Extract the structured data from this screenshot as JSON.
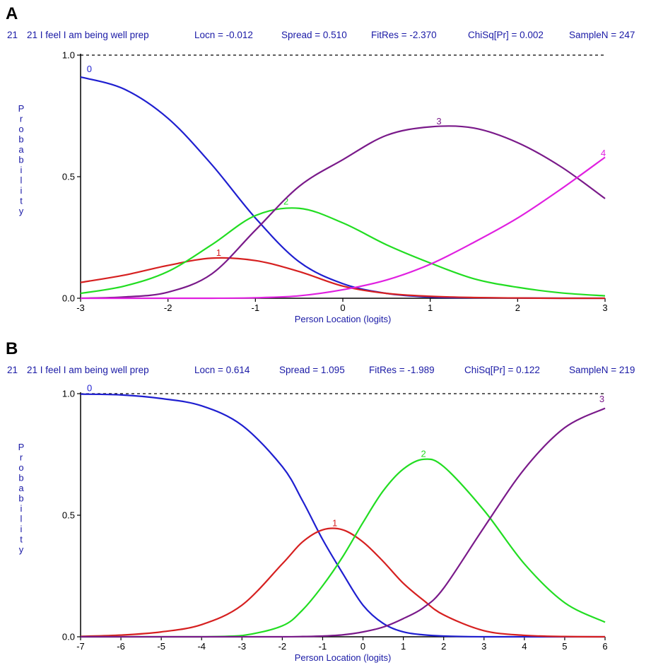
{
  "panels": [
    {
      "letter": "A",
      "header": {
        "item_num": "21",
        "item_text": "21 I feel I am being well prep",
        "locn": "Locn = -0.012",
        "spread": "Spread = 0.510",
        "fitres": "FitRes = -2.370",
        "chisq": "ChiSq[Pr] = 0.002",
        "samplen": "SampleN = 247"
      }
    },
    {
      "letter": "B",
      "header": {
        "item_num": "21",
        "item_text": "21 I feel I am being well prep",
        "locn": "Locn = 0.614",
        "spread": "Spread = 1.095",
        "fitres": "FitRes = -1.989",
        "chisq": "ChiSq[Pr] = 0.122",
        "samplen": "SampleN = 219"
      }
    }
  ],
  "chart_data": [
    {
      "type": "line",
      "xlabel": "Person Location (logits)",
      "ylabel": "Probability",
      "xlim": [
        -3,
        3
      ],
      "ylim": [
        0,
        1
      ],
      "xticks": [
        "-3",
        "-2",
        "-1",
        "0",
        "1",
        "2",
        "3"
      ],
      "yticks": [
        "0.0",
        "0.5",
        "1.0"
      ],
      "reference_line": 1.0,
      "series": [
        {
          "name": "0",
          "color": "#1f1fd0",
          "x": [
            -3,
            -2.5,
            -2,
            -1.5,
            -1,
            -0.5,
            0,
            0.5,
            1,
            1.5,
            2,
            2.5,
            3
          ],
          "y": [
            0.91,
            0.86,
            0.74,
            0.55,
            0.33,
            0.15,
            0.06,
            0.02,
            0.005,
            0.002,
            0.001,
            0.0,
            0.0
          ]
        },
        {
          "name": "1",
          "color": "#d62020",
          "x": [
            -3,
            -2.5,
            -2,
            -1.5,
            -1,
            -0.5,
            0,
            0.5,
            1,
            1.5,
            2,
            2.5,
            3
          ],
          "y": [
            0.065,
            0.095,
            0.135,
            0.165,
            0.155,
            0.11,
            0.05,
            0.02,
            0.008,
            0.003,
            0.001,
            0.0,
            0.0
          ]
        },
        {
          "name": "2",
          "color": "#22dd22",
          "x": [
            -3,
            -2.5,
            -2,
            -1.5,
            -1,
            -0.5,
            0,
            0.5,
            1,
            1.5,
            2,
            2.5,
            3
          ],
          "y": [
            0.02,
            0.05,
            0.11,
            0.22,
            0.34,
            0.37,
            0.31,
            0.22,
            0.145,
            0.08,
            0.045,
            0.022,
            0.01
          ]
        },
        {
          "name": "3",
          "color": "#7a1a8a",
          "x": [
            -3,
            -2.5,
            -2,
            -1.5,
            -1,
            -0.5,
            0,
            0.5,
            1,
            1.5,
            2,
            2.5,
            3
          ],
          "y": [
            0.0,
            0.005,
            0.025,
            0.1,
            0.28,
            0.46,
            0.57,
            0.67,
            0.705,
            0.7,
            0.64,
            0.54,
            0.41
          ]
        },
        {
          "name": "4",
          "color": "#e020e0",
          "x": [
            -3,
            -2.5,
            -2,
            -1.5,
            -1,
            -0.5,
            0,
            0.5,
            1,
            1.5,
            2,
            2.5,
            3
          ],
          "y": [
            0.0,
            0.0,
            0.0,
            0.0,
            0.002,
            0.01,
            0.035,
            0.075,
            0.14,
            0.23,
            0.33,
            0.45,
            0.58
          ]
        }
      ]
    },
    {
      "type": "line",
      "xlabel": "Person Location (logits)",
      "ylabel": "Probability",
      "xlim": [
        -7,
        6
      ],
      "ylim": [
        0,
        1
      ],
      "xticks": [
        "-7",
        "-6",
        "-5",
        "-4",
        "-3",
        "-2",
        "-1",
        "0",
        "1",
        "2",
        "3",
        "4",
        "5",
        "6"
      ],
      "yticks": [
        "0.0",
        "0.5",
        "1.0"
      ],
      "reference_line": 1.0,
      "series": [
        {
          "name": "0",
          "color": "#1f1fd0",
          "x": [
            -7,
            -6,
            -5,
            -4,
            -3,
            -2,
            -1.5,
            -1,
            -0.5,
            0,
            0.5,
            1,
            1.5,
            2,
            3,
            4,
            5,
            6
          ],
          "y": [
            0.998,
            0.995,
            0.98,
            0.95,
            0.87,
            0.7,
            0.56,
            0.4,
            0.26,
            0.13,
            0.055,
            0.02,
            0.008,
            0.003,
            0.0,
            0.0,
            0.0,
            0.0
          ]
        },
        {
          "name": "1",
          "color": "#d62020",
          "x": [
            -7,
            -6,
            -5,
            -4,
            -3,
            -2,
            -1.5,
            -1,
            -0.5,
            0,
            0.5,
            1,
            1.5,
            2,
            3,
            4,
            5,
            6
          ],
          "y": [
            0.002,
            0.007,
            0.02,
            0.05,
            0.13,
            0.3,
            0.39,
            0.44,
            0.44,
            0.39,
            0.31,
            0.22,
            0.15,
            0.09,
            0.025,
            0.006,
            0.001,
            0.0
          ]
        },
        {
          "name": "2",
          "color": "#22dd22",
          "x": [
            -7,
            -6,
            -5,
            -4,
            -3,
            -2,
            -1.5,
            -1,
            -0.5,
            0,
            0.5,
            1,
            1.5,
            2,
            3,
            4,
            5,
            6
          ],
          "y": [
            0.0,
            0.0,
            0.0,
            0.0,
            0.005,
            0.045,
            0.11,
            0.21,
            0.33,
            0.47,
            0.6,
            0.69,
            0.73,
            0.7,
            0.52,
            0.3,
            0.14,
            0.06
          ]
        },
        {
          "name": "3",
          "color": "#7a1a8a",
          "x": [
            -7,
            -6,
            -5,
            -4,
            -3,
            -2,
            -1.5,
            -1,
            -0.5,
            0,
            0.5,
            1,
            1.5,
            2,
            3,
            4,
            5,
            6
          ],
          "y": [
            0.0,
            0.0,
            0.0,
            0.0,
            0.0,
            0.0,
            0.001,
            0.003,
            0.008,
            0.02,
            0.04,
            0.075,
            0.12,
            0.2,
            0.45,
            0.69,
            0.86,
            0.94
          ]
        }
      ]
    }
  ]
}
